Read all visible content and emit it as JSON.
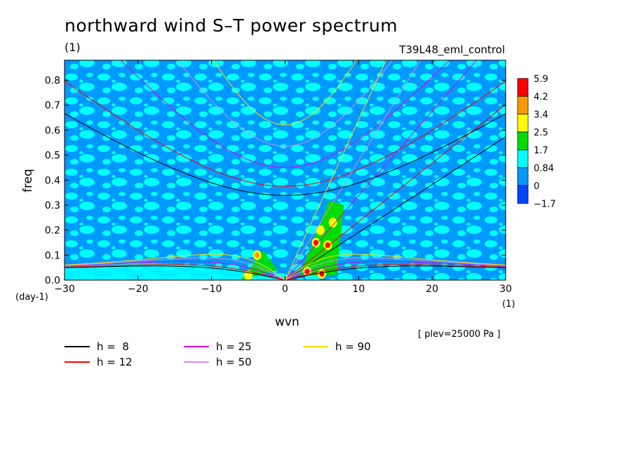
{
  "chart_data": {
    "type": "heatmap",
    "title": "northward wind S–T power spectrum",
    "subtitle": "(1)",
    "run_label": "T39L48_eml_control",
    "xlabel": "wvn",
    "ylabel": "freq",
    "x_unit": "(1)",
    "y_unit": "(day-1)",
    "xlim": [
      -30,
      30
    ],
    "ylim": [
      0,
      0.88
    ],
    "x_ticks": [
      {
        "value": -30,
        "label": "−30"
      },
      {
        "value": -20,
        "label": "−20"
      },
      {
        "value": -10,
        "label": "−10"
      },
      {
        "value": 0,
        "label": "0"
      },
      {
        "value": 10,
        "label": "10"
      },
      {
        "value": 20,
        "label": "20"
      },
      {
        "value": 30,
        "label": "30"
      }
    ],
    "y_ticks": [
      {
        "value": 0.0,
        "label": "0.0"
      },
      {
        "value": 0.1,
        "label": "0.1"
      },
      {
        "value": 0.2,
        "label": "0.2"
      },
      {
        "value": 0.3,
        "label": "0.3"
      },
      {
        "value": 0.4,
        "label": "0.4"
      },
      {
        "value": 0.5,
        "label": "0.5"
      },
      {
        "value": 0.6,
        "label": "0.6"
      },
      {
        "value": 0.7,
        "label": "0.7"
      },
      {
        "value": 0.8,
        "label": "0.8"
      }
    ],
    "colorbar": {
      "labels": [
        "5.9",
        "4.2",
        "3.4",
        "2.5",
        "1.7",
        "0.84",
        "0",
        "−1.7"
      ],
      "colors": [
        "#ff0000",
        "#ff9900",
        "#ffff00",
        "#00dd00",
        "#00ffff",
        "#0099ff",
        "#0044ff"
      ]
    },
    "background_colors": {
      "low": "#0099ff",
      "mid": "#00ffff",
      "high": "#00dd00"
    },
    "hot_spots": [
      {
        "wvn": 4.2,
        "freq": 0.15,
        "level": "#ff0000"
      },
      {
        "wvn": 5.8,
        "freq": 0.14,
        "level": "#ff0000"
      },
      {
        "wvn": 3.0,
        "freq": 0.035,
        "level": "#ff0000"
      },
      {
        "wvn": 5.0,
        "freq": 0.025,
        "level": "#ff0000"
      },
      {
        "wvn": -3.8,
        "freq": 0.1,
        "level": "#ff9900"
      },
      {
        "wvn": 4.8,
        "freq": 0.2,
        "level": "#ffff00"
      },
      {
        "wvn": 6.5,
        "freq": 0.23,
        "level": "#ffff00"
      },
      {
        "wvn": -5.0,
        "freq": 0.02,
        "level": "#ffff00"
      }
    ],
    "dispersion_curves": [
      {
        "name": "h =  8",
        "h": 8,
        "color": "#000000"
      },
      {
        "name": "h = 12",
        "h": 12,
        "color": "#ff0000"
      },
      {
        "name": "h = 25",
        "h": 25,
        "color": "#dd00dd"
      },
      {
        "name": "h = 50",
        "h": 50,
        "color": "#dd88dd"
      },
      {
        "name": "h = 90",
        "h": 90,
        "color": "#ffdd00"
      }
    ],
    "plev_note": "[ plev=25000 Pa ]"
  }
}
